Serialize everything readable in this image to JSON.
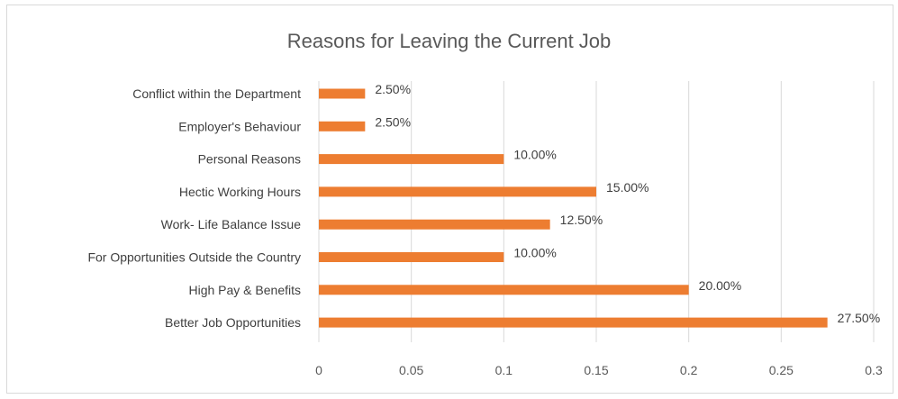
{
  "chart_data": {
    "type": "bar",
    "orientation": "horizontal",
    "title": "Reasons for Leaving the Current Job",
    "xlabel": "",
    "ylabel": "",
    "categories": [
      "Conflict within the Department",
      "Employer's Behaviour",
      "Personal Reasons",
      "Hectic Working Hours",
      "Work- Life Balance Issue",
      "For Opportunities Outside the Country",
      "High Pay & Benefits",
      "Better Job Opportunities"
    ],
    "values": [
      0.025,
      0.025,
      0.1,
      0.15,
      0.125,
      0.1,
      0.2,
      0.275
    ],
    "data_labels": [
      "2.50%",
      "2.50%",
      "10.00%",
      "15.00%",
      "12.50%",
      "10.00%",
      "20.00%",
      "27.50%"
    ],
    "xlim": [
      0,
      0.3
    ],
    "xticks": [
      "0",
      "0.05",
      "0.1",
      "0.15",
      "0.2",
      "0.25",
      "0.3"
    ],
    "grid": true,
    "legend": "none",
    "bar_color": "#ed7d31",
    "grid_color": "#d9d9d9"
  }
}
